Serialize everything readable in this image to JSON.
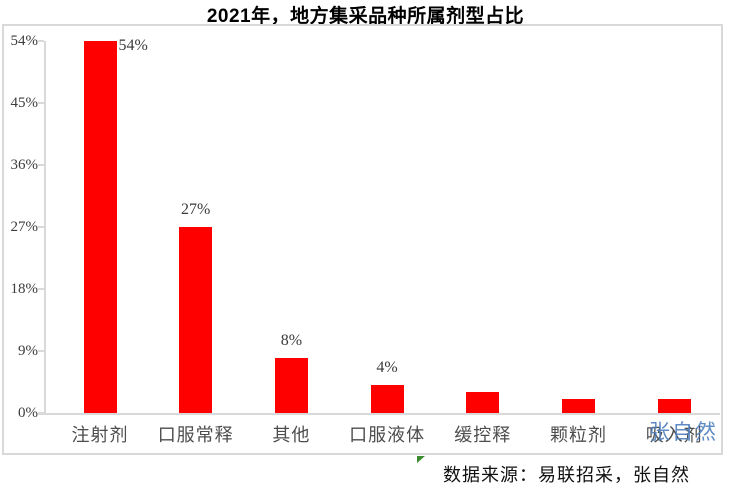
{
  "title": "2021年，地方集采品种所属剂型占比",
  "chart_data": {
    "type": "bar",
    "title": "2021年，地方集采品种所属剂型占比",
    "categories": [
      "注射剂",
      "口服常释",
      "其他",
      "口服液体",
      "缓控释",
      "颗粒剂",
      "吸入剂"
    ],
    "values": [
      54,
      27,
      8,
      4,
      3,
      2,
      2
    ],
    "data_labels": [
      "54%",
      "27%",
      "8%",
      "4%",
      "",
      "",
      ""
    ],
    "y_ticks": [
      "0%",
      "9%",
      "18%",
      "27%",
      "36%",
      "45%",
      "54%"
    ],
    "y_tick_values": [
      0,
      9,
      18,
      27,
      36,
      45,
      54
    ],
    "ylim": [
      0,
      54
    ],
    "xlabel": "",
    "ylabel": "",
    "grid": false,
    "legend": false,
    "bar_color": "#ff0000",
    "axis_color": "#d9d9d9"
  },
  "watermark": {
    "text": "张自然",
    "color": "#4e7fbe"
  },
  "source": {
    "flag_icon": "green-corner-triangle",
    "text": "数据来源：易联招采，张自然"
  }
}
